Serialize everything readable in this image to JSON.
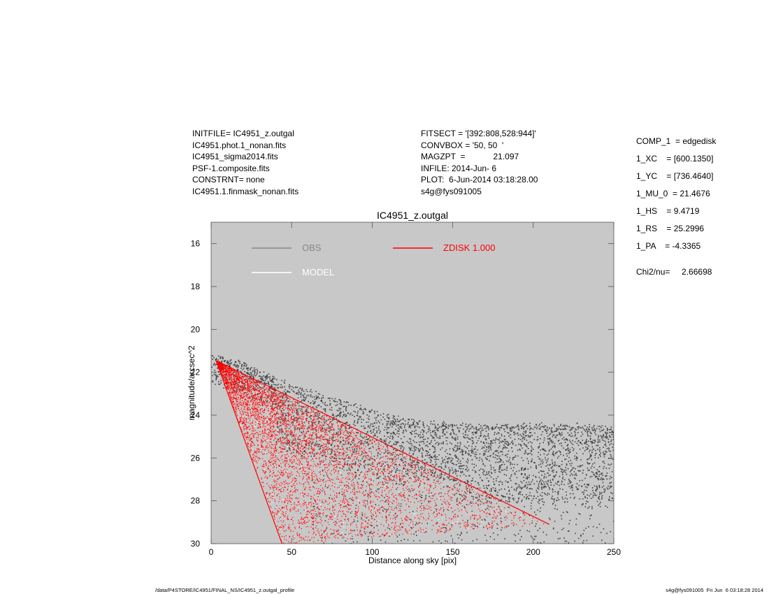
{
  "header": {
    "left_lines": [
      "INITFILE= IC4951_z.outgal",
      "IC4951.phot.1_nonan.fits",
      "IC4951_sigma2014.fits",
      "PSF-1.composite.fits",
      "CONSTRNT= none",
      "IC4951.1.finmask_nonan.fits"
    ],
    "mid_lines": [
      "FITSECT = '[392:808,528:944]'",
      "CONVBOX = '50, 50  '",
      "MAGZPT  =            21.097",
      "INFILE: 2014-Jun- 6",
      "PLOT:  6-Jun-2014 03:18:28.00",
      "s4g@fys091005"
    ],
    "right_lines": [
      "COMP_1  = edgedisk",
      "1_XC    = [600.1350]",
      "1_YC    = [736.4640]",
      "1_MU_0  = 21.4676",
      "1_HS    = 9.4719",
      "1_RS    = 25.2996",
      "1_PA    = -4.3365"
    ],
    "chi_line": "Chi2/nu=     2.66698"
  },
  "footer": {
    "left": "/data/P4STORE/IC4951/FINAL_NS/IC4951_z.outgal_profile",
    "right": "s4g@fys091005  Fri Jun  6 03:18:28 2014"
  },
  "chart_data": {
    "type": "scatter",
    "title": "IC4951_z.outgal",
    "xlabel": "Distance along sky [pix]",
    "ylabel": "magnitude/arcsec^2",
    "xlim": [
      0,
      250
    ],
    "ylim": [
      30,
      15
    ],
    "y_inverted": true,
    "x_ticks": [
      0,
      50,
      100,
      150,
      200,
      250
    ],
    "y_ticks": [
      16,
      18,
      20,
      22,
      24,
      26,
      28,
      30
    ],
    "background": "#c8c8c8",
    "legend": [
      {
        "label": "OBS",
        "color": "#888888"
      },
      {
        "label": "ZDISK  1.000",
        "color": "#ff0000"
      },
      {
        "label": "MODEL",
        "color": "#ffffff"
      }
    ],
    "series": [
      {
        "name": "OBS",
        "color": "#404040",
        "style": "points",
        "upper_edge": {
          "x": [
            0,
            20,
            40,
            80,
            120,
            160,
            200,
            240,
            250
          ],
          "y": [
            21.1,
            21.6,
            22.3,
            23.3,
            24.2,
            24.5,
            24.4,
            24.5,
            24.6
          ]
        },
        "fill_to": 30
      },
      {
        "name": "ZDISK  1.000",
        "color": "#ff0000",
        "style": "fan",
        "upper_edge": {
          "x": [
            3,
            210
          ],
          "y": [
            21.45,
            29.1
          ]
        },
        "lower_edge": {
          "x": [
            3,
            44
          ],
          "y": [
            21.45,
            30
          ]
        }
      },
      {
        "name": "MODEL",
        "color": "#ffffff",
        "style": "fan",
        "upper_edge": {
          "x": [
            3,
            210
          ],
          "y": [
            21.45,
            29.1
          ]
        },
        "lower_edge": {
          "x": [
            3,
            44
          ],
          "y": [
            21.45,
            30
          ]
        }
      }
    ]
  }
}
